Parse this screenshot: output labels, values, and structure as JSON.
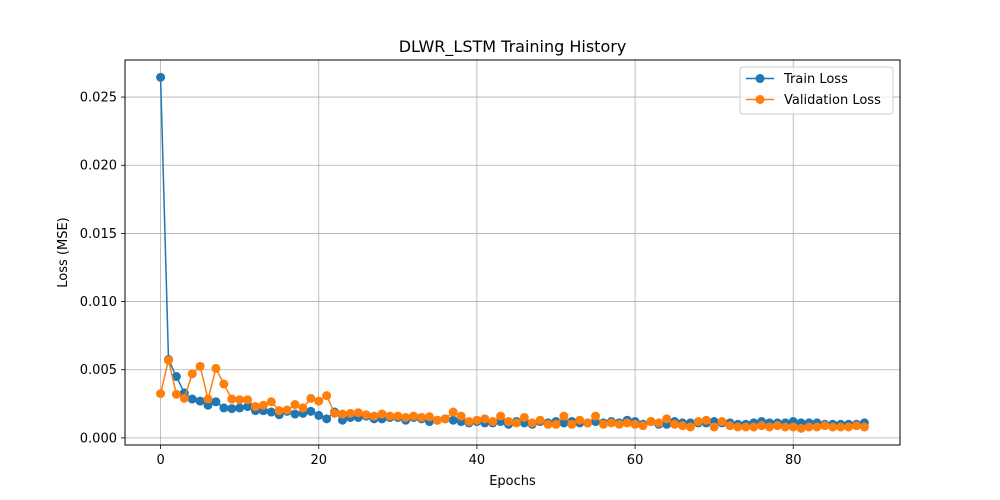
{
  "chart_data": {
    "type": "line",
    "title": "DLWR_LSTM Training History",
    "xlabel": "Epochs",
    "ylabel": "Loss (MSE)",
    "xlim": [
      -4.5,
      93.5
    ],
    "ylim": [
      -0.00052,
      0.02772
    ],
    "x_ticks": [
      0,
      20,
      40,
      60,
      80
    ],
    "y_ticks": [
      0.0,
      0.005,
      0.01,
      0.015,
      0.02,
      0.025
    ],
    "y_tick_labels": [
      "0.000",
      "0.005",
      "0.010",
      "0.015",
      "0.020",
      "0.025"
    ],
    "grid": true,
    "legend_position": "top-right",
    "series": [
      {
        "name": "Train Loss",
        "color": "#1f77b4",
        "values": [
          0.02645,
          0.00575,
          0.0045,
          0.0033,
          0.00285,
          0.0027,
          0.0024,
          0.00265,
          0.0022,
          0.00215,
          0.0022,
          0.0023,
          0.002,
          0.002,
          0.0019,
          0.0017,
          0.00195,
          0.00175,
          0.0018,
          0.00195,
          0.00165,
          0.0014,
          0.0019,
          0.0013,
          0.0015,
          0.0015,
          0.0016,
          0.0014,
          0.0014,
          0.0015,
          0.0015,
          0.0013,
          0.0015,
          0.0014,
          0.0012,
          0.0013,
          0.0014,
          0.0013,
          0.0012,
          0.0011,
          0.0012,
          0.0011,
          0.0011,
          0.0012,
          0.001,
          0.0012,
          0.0011,
          0.001,
          0.0012,
          0.0011,
          0.0012,
          0.0011,
          0.0012,
          0.0011,
          0.0011,
          0.0012,
          0.0011,
          0.0012,
          0.0011,
          0.0013,
          0.0012,
          0.001,
          0.0012,
          0.001,
          0.001,
          0.0012,
          0.0011,
          0.0011,
          0.0011,
          0.0011,
          0.0012,
          0.0011,
          0.0011,
          0.001,
          0.001,
          0.0011,
          0.0012,
          0.0011,
          0.0011,
          0.0011,
          0.0012,
          0.0011,
          0.0011,
          0.0011,
          0.001,
          0.001,
          0.001,
          0.001,
          0.001,
          0.0011
        ]
      },
      {
        "name": "Validation Loss",
        "color": "#ff7f0e",
        "values": [
          0.00325,
          0.0057,
          0.0032,
          0.0029,
          0.0047,
          0.00525,
          0.00285,
          0.0051,
          0.00395,
          0.00285,
          0.0028,
          0.0028,
          0.0023,
          0.0024,
          0.00265,
          0.002,
          0.00205,
          0.00245,
          0.0022,
          0.0029,
          0.0027,
          0.0031,
          0.0018,
          0.00175,
          0.0018,
          0.00185,
          0.0017,
          0.0016,
          0.00175,
          0.0016,
          0.0016,
          0.0015,
          0.0016,
          0.0015,
          0.00155,
          0.0013,
          0.0014,
          0.0019,
          0.0016,
          0.0012,
          0.0013,
          0.0014,
          0.0012,
          0.0016,
          0.0012,
          0.0011,
          0.0015,
          0.0011,
          0.0013,
          0.001,
          0.001,
          0.0016,
          0.001,
          0.0013,
          0.0011,
          0.0016,
          0.001,
          0.0011,
          0.001,
          0.0011,
          0.001,
          0.0009,
          0.0012,
          0.0011,
          0.0014,
          0.001,
          0.0009,
          0.0008,
          0.0012,
          0.0013,
          0.0008,
          0.0012,
          0.0009,
          0.0008,
          0.0008,
          0.0008,
          0.0009,
          0.0008,
          0.0009,
          0.0008,
          0.0008,
          0.0007,
          0.0008,
          0.0008,
          0.0009,
          0.0008,
          0.0008,
          0.0008,
          0.0009,
          0.0008
        ]
      }
    ]
  }
}
